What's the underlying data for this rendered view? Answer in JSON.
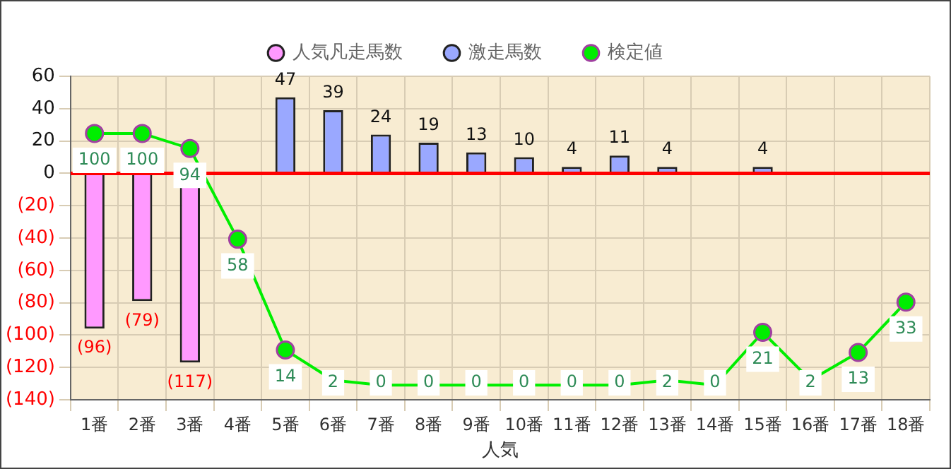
{
  "chart_data": {
    "type": "bar",
    "xlabel": "人気",
    "categories": [
      "1番",
      "2番",
      "3番",
      "4番",
      "5番",
      "6番",
      "7番",
      "8番",
      "9番",
      "10番",
      "11番",
      "12番",
      "13番",
      "14番",
      "15番",
      "16番",
      "17番",
      "18番"
    ],
    "series": [
      {
        "name": "人気凡走馬数",
        "color": "#ff99ff",
        "values": [
          -96,
          -79,
          -117,
          null,
          null,
          null,
          null,
          null,
          null,
          null,
          null,
          null,
          null,
          null,
          null,
          null,
          null,
          null
        ],
        "value_labels": [
          "(96)",
          "(79)",
          "(117)",
          null,
          null,
          null,
          null,
          null,
          null,
          null,
          null,
          null,
          null,
          null,
          null,
          null,
          null,
          null
        ]
      },
      {
        "name": "激走馬数",
        "color": "#9aa8ff",
        "values": [
          null,
          null,
          null,
          null,
          47,
          39,
          24,
          19,
          13,
          10,
          4,
          11,
          4,
          null,
          4,
          null,
          null,
          null
        ],
        "value_labels": [
          null,
          null,
          null,
          null,
          "47",
          "39",
          "24",
          "19",
          "13",
          "10",
          "4",
          "11",
          "4",
          null,
          "4",
          null,
          null,
          null
        ]
      },
      {
        "name": "検定値",
        "type": "line",
        "axis": "y2",
        "color": "#00ee00",
        "marker": "circle",
        "values": [
          100,
          100,
          94,
          58,
          14,
          2,
          0,
          0,
          0,
          0,
          0,
          0,
          2,
          0,
          21,
          2,
          13,
          33
        ],
        "value_labels": [
          "100",
          "100",
          "94",
          "58",
          "14",
          "2",
          "0",
          "0",
          "0",
          "0",
          "0",
          "0",
          "2",
          "0",
          "21",
          "2",
          "13",
          "33"
        ]
      }
    ],
    "ylim": [
      -140,
      60
    ],
    "yticks": [
      {
        "value": -140,
        "label": "(140)"
      },
      {
        "value": -120,
        "label": "(120)"
      },
      {
        "value": -100,
        "label": "(100)"
      },
      {
        "value": -80,
        "label": "(80)"
      },
      {
        "value": -60,
        "label": "(60)"
      },
      {
        "value": -40,
        "label": "(40)"
      },
      {
        "value": -20,
        "label": "(20)"
      },
      0,
      20,
      40,
      60
    ],
    "y2lim": [
      -5.8,
      122.7
    ],
    "ref_lines": [
      {
        "axis": "y",
        "value": 0,
        "color": "#ff0000"
      }
    ],
    "grid": true,
    "legend": "top"
  }
}
